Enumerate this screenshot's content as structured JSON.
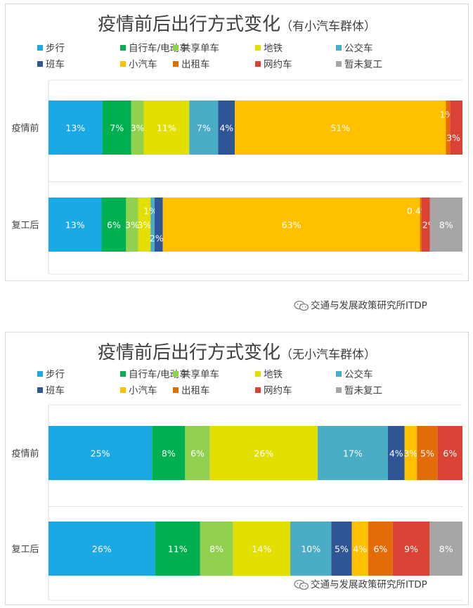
{
  "categories": [
    {
      "label": "步行",
      "color": "#1aa9e5"
    },
    {
      "label": "自行车/电动车",
      "color": "#00b050"
    },
    {
      "label": "共享单车",
      "color": "#92d050"
    },
    {
      "label": "地铁",
      "color": "#e3df00"
    },
    {
      "label": "公交车",
      "color": "#4bacc6"
    },
    {
      "label": "班车",
      "color": "#2f5597"
    },
    {
      "label": "小汽车",
      "color": "#ffc000"
    },
    {
      "label": "出租车",
      "color": "#e36c09"
    },
    {
      "label": "网约车",
      "color": "#d94234"
    },
    {
      "label": "暂未复工",
      "color": "#a6a6a6"
    }
  ],
  "watermark": "交通与发展政策研究所ITDP",
  "chart_data": [
    {
      "type": "bar",
      "orientation": "horizontal",
      "stacked": true,
      "title": "疫情前后出行方式变化",
      "subtitle": "（有小汽车群体）",
      "legend": "top",
      "categories": [
        "疫情前",
        "复工后"
      ],
      "series": [
        {
          "name": "步行",
          "values": [
            13,
            13
          ],
          "labels": [
            "13%",
            "13%"
          ]
        },
        {
          "name": "自行车/电动车",
          "values": [
            7,
            6
          ],
          "labels": [
            "7%",
            "6%"
          ]
        },
        {
          "name": "共享单车",
          "values": [
            3,
            3
          ],
          "labels": [
            "3%",
            "3%"
          ]
        },
        {
          "name": "地铁",
          "values": [
            11,
            3
          ],
          "labels": [
            "11%",
            "3%"
          ]
        },
        {
          "name": "公交车",
          "values": [
            7,
            1
          ],
          "labels": [
            "7%",
            "1%"
          ]
        },
        {
          "name": "班车",
          "values": [
            4,
            2
          ],
          "labels": [
            "4%",
            "2%"
          ]
        },
        {
          "name": "小汽车",
          "values": [
            51,
            63
          ],
          "labels": [
            "51%",
            "63%"
          ]
        },
        {
          "name": "出租车",
          "values": [
            1,
            0.4
          ],
          "labels": [
            "1%",
            "0.4%"
          ]
        },
        {
          "name": "网约车",
          "values": [
            3,
            2
          ],
          "labels": [
            "3%",
            "2%"
          ]
        },
        {
          "name": "暂未复工",
          "values": [
            0,
            8
          ],
          "labels": [
            "",
            "8%"
          ]
        }
      ]
    },
    {
      "type": "bar",
      "orientation": "horizontal",
      "stacked": true,
      "title": "疫情前后出行方式变化",
      "subtitle": "（无小汽车群体）",
      "legend": "top",
      "categories": [
        "疫情前",
        "复工后"
      ],
      "series": [
        {
          "name": "步行",
          "values": [
            25,
            26
          ],
          "labels": [
            "25%",
            "26%"
          ]
        },
        {
          "name": "自行车/电动车",
          "values": [
            8,
            11
          ],
          "labels": [
            "8%",
            "11%"
          ]
        },
        {
          "name": "共享单车",
          "values": [
            6,
            8
          ],
          "labels": [
            "6%",
            "8%"
          ]
        },
        {
          "name": "地铁",
          "values": [
            26,
            14
          ],
          "labels": [
            "26%",
            "14%"
          ]
        },
        {
          "name": "公交车",
          "values": [
            17,
            10
          ],
          "labels": [
            "17%",
            "10%"
          ]
        },
        {
          "name": "班车",
          "values": [
            4,
            5
          ],
          "labels": [
            "4%",
            "5%"
          ]
        },
        {
          "name": "小汽车",
          "values": [
            3,
            4
          ],
          "labels": [
            "3%",
            "4%"
          ]
        },
        {
          "name": "出租车",
          "values": [
            5,
            6
          ],
          "labels": [
            "5%",
            "6%"
          ]
        },
        {
          "name": "网约车",
          "values": [
            6,
            9
          ],
          "labels": [
            "6%",
            "9%"
          ]
        },
        {
          "name": "暂未复工",
          "values": [
            0,
            8
          ],
          "labels": [
            "",
            "8%"
          ]
        }
      ]
    }
  ]
}
